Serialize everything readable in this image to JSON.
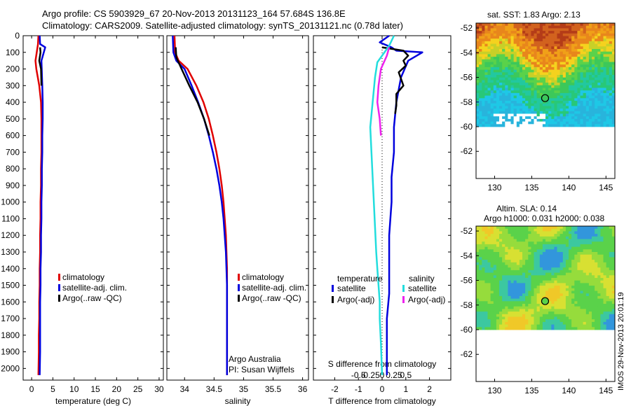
{
  "header": {
    "title_line1": "Argo profile: CS 5903929_67 20-Nov-2013 20131123_164 57.684S 136.8E",
    "title_line2": "Climatology: CARS2009. Satellite-adjusted climatology: synTS_20131121.nc (0.78d later)"
  },
  "colors": {
    "climatology": "#e00000",
    "satellite": "#0000dd",
    "argo": "#000000",
    "satellite_s": "#22dddd",
    "argo_s": "#ee22ee"
  },
  "depth_ticks": [
    0,
    100,
    200,
    300,
    400,
    500,
    600,
    700,
    800,
    900,
    1000,
    1100,
    1200,
    1300,
    1400,
    1500,
    1600,
    1700,
    1800,
    1900,
    2000
  ],
  "chart_data": [
    {
      "type": "line",
      "name": "temperature",
      "xlabel": "temperature (deg C)",
      "ylabel": "",
      "xlim": [
        -2,
        31
      ],
      "ylim": [
        2070,
        0
      ],
      "xticks": [
        0,
        5,
        10,
        15,
        20,
        25,
        30
      ],
      "legend": [
        "climatology",
        "satellite-adj. clim.",
        "Argo(..raw -QC)"
      ],
      "series": [
        {
          "name": "climatology",
          "color_key": "climatology",
          "x": [
            1.6,
            1.5,
            0.9,
            1.1,
            1.8,
            2.2,
            2.3,
            2.3,
            2.3,
            2.2,
            2.2,
            2.1,
            2.1,
            2.0,
            2.0,
            1.9,
            1.9,
            1.8,
            1.8,
            1.7,
            1.7,
            1.6
          ],
          "y": [
            0,
            50,
            150,
            200,
            300,
            400,
            500,
            600,
            700,
            800,
            900,
            1000,
            1100,
            1200,
            1300,
            1400,
            1500,
            1600,
            1700,
            1800,
            1900,
            2040
          ]
        },
        {
          "name": "satellite-adj. clim.",
          "color_key": "satellite",
          "x": [
            1.9,
            2.0,
            3.2,
            2.3,
            2.5,
            2.6,
            2.6,
            2.5,
            2.5,
            2.4,
            2.4,
            2.3,
            2.3,
            2.2,
            2.2,
            2.1,
            2.1,
            2.0,
            2.0,
            2.0,
            2.0,
            1.9
          ],
          "y": [
            0,
            50,
            70,
            150,
            300,
            400,
            500,
            600,
            700,
            800,
            900,
            1000,
            1100,
            1200,
            1300,
            1400,
            1500,
            1600,
            1700,
            1800,
            1900,
            2040
          ]
        },
        {
          "name": "Argo(..raw -QC)",
          "color_key": "argo",
          "x": [
            2.0,
            2.1,
            1.8,
            2.2,
            2.3
          ],
          "y": [
            70,
            100,
            150,
            200,
            300
          ]
        }
      ]
    },
    {
      "type": "line",
      "name": "salinity",
      "xlabel": "salinity",
      "ylabel": "",
      "xlim": [
        33.7,
        36.1
      ],
      "ylim": [
        2070,
        0
      ],
      "xticks": [
        34,
        34.5,
        35,
        35.5,
        36
      ],
      "legend": [
        "climatology",
        "satellite-adj. clim.",
        "Argo(..raw -QC)"
      ],
      "annotations": [
        "Argo Australia",
        "PI: Susan Wijffels"
      ],
      "series": [
        {
          "name": "climatology",
          "color_key": "climatology",
          "x": [
            33.83,
            33.84,
            33.9,
            34.05,
            34.2,
            34.32,
            34.41,
            34.48,
            34.54,
            34.59,
            34.63,
            34.66,
            34.68,
            34.7,
            34.71,
            34.72,
            34.72,
            34.72,
            34.72,
            34.72,
            34.72
          ],
          "y": [
            0,
            100,
            150,
            200,
            300,
            400,
            500,
            600,
            700,
            800,
            900,
            1000,
            1100,
            1200,
            1300,
            1400,
            1500,
            1600,
            1700,
            1800,
            2040
          ]
        },
        {
          "name": "satellite-adj. clim.",
          "color_key": "satellite",
          "x": [
            33.8,
            33.81,
            33.86,
            34.0,
            34.12,
            34.23,
            34.33,
            34.41,
            34.48,
            34.54,
            34.59,
            34.63,
            34.66,
            34.68,
            34.7,
            34.71,
            34.72,
            34.72,
            34.72,
            34.72,
            34.72
          ],
          "y": [
            0,
            100,
            150,
            200,
            300,
            400,
            500,
            600,
            700,
            800,
            900,
            1000,
            1100,
            1200,
            1300,
            1400,
            1500,
            1600,
            1700,
            1800,
            2040
          ]
        },
        {
          "name": "Argo(..raw -QC)",
          "color_key": "argo",
          "x": [
            33.85,
            33.86,
            33.95,
            34.08,
            34.22,
            34.33,
            34.42
          ],
          "y": [
            70,
            130,
            200,
            300,
            400,
            500,
            600
          ]
        }
      ]
    },
    {
      "type": "line",
      "name": "differences",
      "xlabel": "T difference from climatology",
      "xlabel_top": "S difference from climatology",
      "ylabel": "",
      "xlim": [
        -2.9,
        2.9
      ],
      "ylim": [
        2070,
        0
      ],
      "xticks": [
        -2,
        -1,
        0,
        1,
        2
      ],
      "sticks_labels": [
        "-0.5",
        "-0.25",
        "0",
        "0.25",
        "0.5"
      ],
      "sticks_values": [
        -1,
        -0.5,
        0,
        0.5,
        1
      ],
      "legend_headers": [
        "temperature",
        "salinity"
      ],
      "legend": [
        "satellite",
        "Argo(-adj)",
        "satellite",
        "Argo(-adj)"
      ],
      "series": [
        {
          "name": "temperature satellite",
          "color_key": "satellite",
          "x": [
            0.3,
            -0.1,
            0.4,
            0.6,
            1.7,
            1.1,
            0.8,
            0.6,
            0.5,
            0.5,
            0.4,
            0.4,
            0.3,
            0.3,
            0.3,
            0.2,
            0.2,
            0.2,
            0.2,
            0.2
          ],
          "y": [
            0,
            40,
            70,
            90,
            100,
            150,
            250,
            400,
            550,
            700,
            850,
            1000,
            1200,
            1400,
            1550,
            1700,
            1800,
            1900,
            2000,
            2040
          ]
        },
        {
          "name": "temperature Argo(-adj)",
          "color_key": "argo",
          "x": [
            0.0,
            0.9,
            1.1,
            0.9,
            1.0,
            0.7,
            0.9,
            0.6,
            0.6,
            0.55
          ],
          "y": [
            70,
            90,
            120,
            150,
            180,
            220,
            300,
            350,
            420,
            470
          ]
        },
        {
          "name": "salinity satellite",
          "color_key": "satellite_s",
          "x": [
            0.5,
            0.3,
            -0.2,
            -0.3,
            -0.4,
            -0.5,
            -0.45,
            -0.4,
            -0.35,
            -0.3,
            -0.25,
            -0.2,
            -0.15,
            -0.1,
            -0.1,
            -0.05,
            0.0
          ],
          "y": [
            0,
            60,
            160,
            250,
            400,
            550,
            700,
            850,
            1000,
            1150,
            1300,
            1400,
            1500,
            1600,
            1700,
            1850,
            2040
          ]
        },
        {
          "name": "salinity Argo(-adj)",
          "color_key": "argo_s",
          "x": [
            0.3,
            0.2,
            -0.05,
            -0.15,
            -0.2,
            -0.1,
            -0.05
          ],
          "y": [
            70,
            120,
            200,
            300,
            400,
            500,
            600
          ]
        }
      ]
    },
    {
      "type": "heatmap",
      "name": "sst-map",
      "title": "sat. SST: 1.83 Argo: 2.13",
      "xticks": [
        130,
        135,
        140,
        145
      ],
      "yticks": [
        -52,
        -54,
        -56,
        -58,
        -60,
        -62
      ],
      "xlim": [
        127.5,
        146.2
      ],
      "ylim": [
        -64.2,
        -51.6
      ],
      "argo_position": [
        136.8,
        -57.684
      ]
    },
    {
      "type": "heatmap",
      "name": "sla-map",
      "title_line1": "Altim. SLA: 0.14",
      "title_line2": "Argo h1000: 0.031 h2000: 0.038",
      "xticks": [
        130,
        135,
        140,
        145
      ],
      "yticks": [
        -52,
        -54,
        -56,
        -58,
        -60,
        -62
      ],
      "xlim": [
        127.5,
        146.2
      ],
      "ylim": [
        -64.2,
        -51.6
      ],
      "argo_position": [
        136.8,
        -57.684
      ]
    }
  ],
  "side_label": "IMOS 29-Nov-2013 20:01:19"
}
